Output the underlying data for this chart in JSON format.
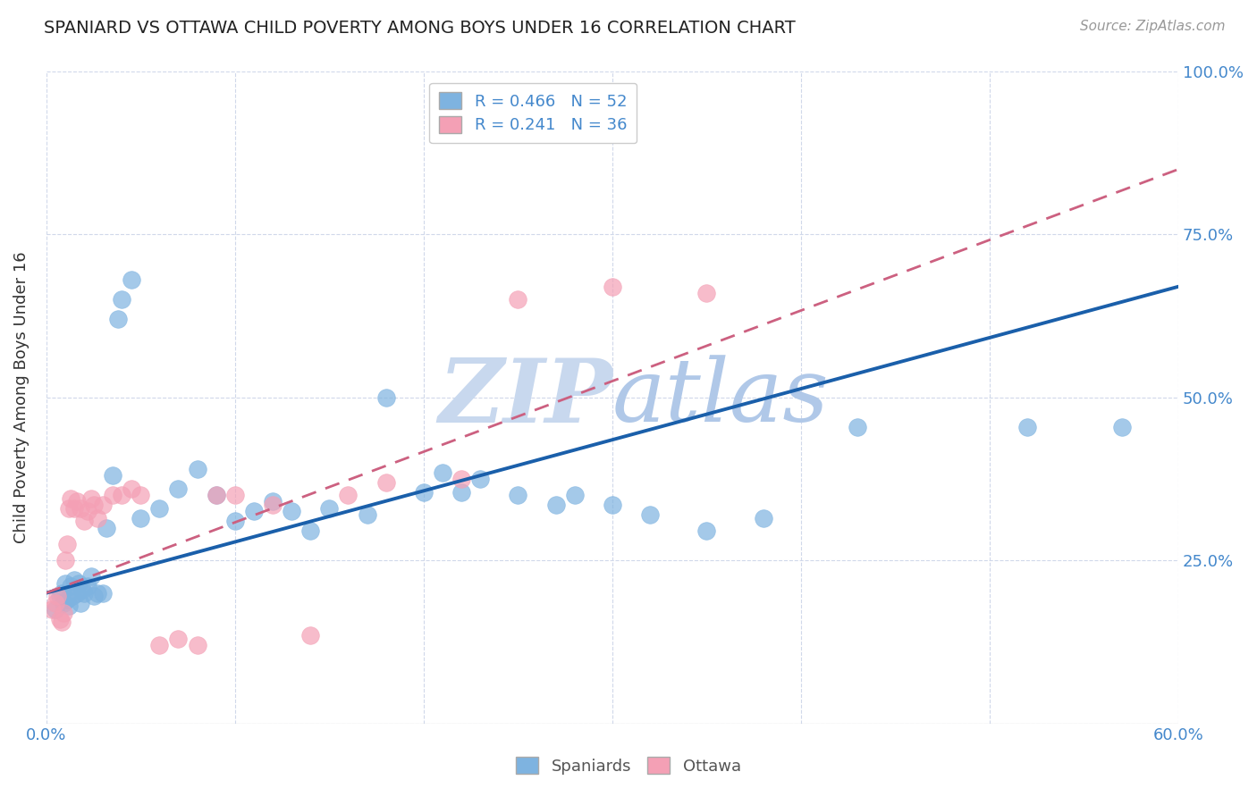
{
  "title": "SPANIARD VS OTTAWA CHILD POVERTY AMONG BOYS UNDER 16 CORRELATION CHART",
  "source": "Source: ZipAtlas.com",
  "ylabel": "Child Poverty Among Boys Under 16",
  "xlim": [
    0.0,
    0.6
  ],
  "ylim": [
    0.0,
    1.0
  ],
  "legend1_label": "R = 0.466   N = 52",
  "legend2_label": "R = 0.241   N = 36",
  "legend_bottom_label1": "Spaniards",
  "legend_bottom_label2": "Ottawa",
  "spaniards_color": "#7eb3e0",
  "ottawa_color": "#f4a0b5",
  "spaniards_line_color": "#1a5faa",
  "ottawa_line_color": "#cc6080",
  "watermark_color": "#c8d8ee",
  "background_color": "#ffffff",
  "blue_line_x0": 0.0,
  "blue_line_y0": 0.2,
  "blue_line_x1": 0.6,
  "blue_line_y1": 0.67,
  "pink_line_x0": 0.0,
  "pink_line_y0": 0.2,
  "pink_line_x1": 0.6,
  "pink_line_y1": 0.85,
  "spaniards_x": [
    0.005,
    0.007,
    0.008,
    0.009,
    0.01,
    0.011,
    0.012,
    0.013,
    0.014,
    0.015,
    0.016,
    0.017,
    0.018,
    0.019,
    0.02,
    0.022,
    0.024,
    0.025,
    0.027,
    0.03,
    0.032,
    0.035,
    0.038,
    0.04,
    0.045,
    0.05,
    0.06,
    0.07,
    0.08,
    0.09,
    0.1,
    0.11,
    0.12,
    0.13,
    0.14,
    0.15,
    0.17,
    0.18,
    0.2,
    0.21,
    0.22,
    0.23,
    0.25,
    0.27,
    0.28,
    0.3,
    0.32,
    0.35,
    0.38,
    0.43,
    0.52,
    0.57
  ],
  "spaniards_y": [
    0.175,
    0.195,
    0.2,
    0.185,
    0.215,
    0.19,
    0.18,
    0.21,
    0.195,
    0.22,
    0.2,
    0.215,
    0.185,
    0.205,
    0.2,
    0.21,
    0.225,
    0.195,
    0.2,
    0.2,
    0.3,
    0.38,
    0.62,
    0.65,
    0.68,
    0.315,
    0.33,
    0.36,
    0.39,
    0.35,
    0.31,
    0.325,
    0.34,
    0.325,
    0.295,
    0.33,
    0.32,
    0.5,
    0.355,
    0.385,
    0.355,
    0.375,
    0.35,
    0.335,
    0.35,
    0.335,
    0.32,
    0.295,
    0.315,
    0.455,
    0.455,
    0.455
  ],
  "ottawa_x": [
    0.003,
    0.005,
    0.006,
    0.007,
    0.008,
    0.009,
    0.01,
    0.011,
    0.012,
    0.013,
    0.015,
    0.016,
    0.018,
    0.02,
    0.022,
    0.024,
    0.025,
    0.027,
    0.03,
    0.035,
    0.04,
    0.045,
    0.05,
    0.06,
    0.07,
    0.08,
    0.09,
    0.1,
    0.12,
    0.14,
    0.16,
    0.18,
    0.22,
    0.25,
    0.3,
    0.35
  ],
  "ottawa_y": [
    0.175,
    0.185,
    0.195,
    0.16,
    0.155,
    0.17,
    0.25,
    0.275,
    0.33,
    0.345,
    0.33,
    0.34,
    0.33,
    0.31,
    0.325,
    0.345,
    0.335,
    0.315,
    0.335,
    0.35,
    0.35,
    0.36,
    0.35,
    0.12,
    0.13,
    0.12,
    0.35,
    0.35,
    0.335,
    0.135,
    0.35,
    0.37,
    0.375,
    0.65,
    0.67,
    0.66
  ]
}
